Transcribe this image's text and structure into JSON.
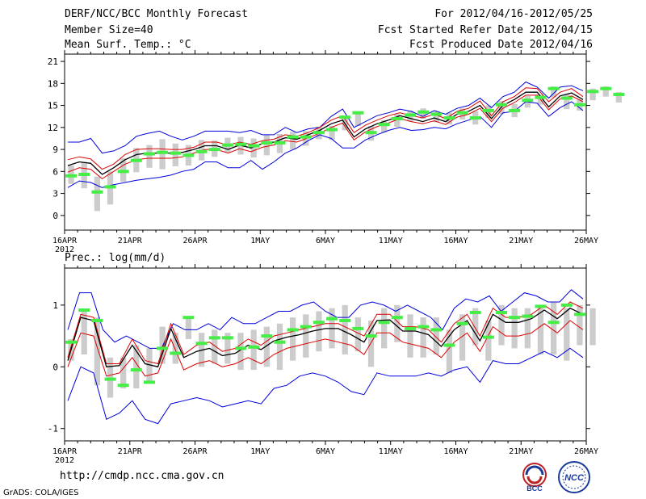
{
  "header": {
    "title": "DERF/NCC/BCC Monthly Forecast",
    "member_size": "Member Size=40",
    "variable1": "Mean Surf. Temp.: °C",
    "period": "For 2012/04/16-2012/05/25",
    "start_date": "Fcst Started Refer Date 2012/04/15",
    "produced_date": "Fcst Produced Date 2012/04/16"
  },
  "footer": {
    "url": "http://cmdp.ncc.cma.gov.cn",
    "grads": "GrADS: COLA/IGES",
    "logo1_text": "BCC",
    "logo2_text": "NCC"
  },
  "colors": {
    "max_min": "#0000dd",
    "spread": "#dd0000",
    "mean": "#000000",
    "obs": "#44ee44",
    "box": "#cccccc"
  },
  "chart_data": [
    {
      "type": "line",
      "title": "Mean Surf. Temp.: °C",
      "x_labels": [
        "16APR",
        "21APR",
        "26APR",
        "1MAY",
        "6MAY",
        "11MAY",
        "16MAY",
        "21MAY",
        "26MAY"
      ],
      "x_sublabel": "2012",
      "yticks": [
        0,
        3,
        6,
        9,
        12,
        15,
        18,
        21
      ],
      "ylim": [
        -2,
        22
      ],
      "series": [
        {
          "name": "max",
          "values": [
            10,
            10,
            10.5,
            8.5,
            8.8,
            9.5,
            10.8,
            11.2,
            11.5,
            10.8,
            10.3,
            10.8,
            11.5,
            11.5,
            11.5,
            11.3,
            11.6,
            11,
            11,
            12,
            11.3,
            11.8,
            12,
            13.5,
            14.5,
            12,
            12.8,
            13.6,
            14,
            14.5,
            14.2,
            13.5,
            14.3,
            13.8,
            14.6,
            15,
            16,
            14.7,
            16.2,
            16.8,
            18.2,
            17.5,
            16,
            17.5,
            17.7,
            17
          ]
        },
        {
          "name": "upper",
          "values": [
            7.6,
            8,
            7.7,
            6.3,
            7,
            8.3,
            9,
            9.1,
            9.1,
            9,
            9,
            9.3,
            10,
            10,
            9.6,
            10,
            9.7,
            10.2,
            10.4,
            11,
            10.8,
            11.3,
            12,
            13,
            13.6,
            11.3,
            12.3,
            13,
            13.6,
            14,
            13.6,
            13.3,
            13.8,
            13.2,
            14.2,
            14.6,
            15.6,
            13.6,
            15.5,
            16.2,
            17.4,
            17.3,
            15.5,
            16.8,
            17.3,
            16.2
          ]
        },
        {
          "name": "mean",
          "values": [
            6.8,
            7.3,
            7.1,
            5.6,
            6.5,
            7.6,
            8.3,
            8.5,
            8.5,
            8.5,
            8.6,
            9,
            9.5,
            9.5,
            9,
            9.6,
            9.2,
            9.8,
            10,
            10.6,
            10.4,
            11,
            11.6,
            12.5,
            13,
            10.7,
            11.8,
            12.5,
            13,
            13.6,
            13.2,
            12.8,
            13.3,
            12.8,
            13.8,
            14.2,
            15,
            13.2,
            15,
            15.8,
            16.8,
            16.8,
            14.8,
            16.3,
            16.7,
            15.8
          ]
        },
        {
          "name": "lower",
          "values": [
            5.9,
            6.5,
            6.3,
            5,
            6,
            7,
            7.6,
            7.8,
            7.8,
            7.8,
            8,
            8.5,
            9,
            9,
            8.5,
            9.1,
            8.7,
            9.3,
            9.6,
            10.2,
            10,
            10.6,
            11.2,
            12,
            12.6,
            10.3,
            11.4,
            12.1,
            12.6,
            13.2,
            12.8,
            12.5,
            12.9,
            12.4,
            13.4,
            13.8,
            14.6,
            12.8,
            14.6,
            15.4,
            16.4,
            16.4,
            14.4,
            15.9,
            16.3,
            15.5
          ]
        },
        {
          "name": "min",
          "values": [
            3.8,
            4.7,
            4.5,
            3.8,
            4.2,
            4.5,
            4.8,
            5,
            5.2,
            5.5,
            6,
            6.3,
            7.3,
            7.3,
            6.5,
            6.5,
            7.5,
            6.3,
            7.3,
            8.5,
            9.2,
            10.2,
            11,
            10.5,
            9.2,
            9.2,
            10.3,
            11,
            11.6,
            12,
            11.6,
            11.7,
            12,
            11.8,
            12.5,
            13,
            13.5,
            12,
            14,
            14.2,
            15.5,
            15.3,
            13.5,
            14.7,
            15.5,
            14.3
          ]
        }
      ],
      "obs": [
        5.4,
        5.6,
        3.2,
        3.9,
        6,
        7.5,
        8.4,
        8.6,
        8.5,
        8.2,
        8.7,
        9,
        9.6,
        9.7,
        9.5,
        9.9,
        9.9,
        10.7,
        10.7,
        11.3,
        11.7,
        13.4,
        14,
        11.3,
        12.4,
        13.2,
        13.7,
        14.1,
        13.8,
        13.3,
        14,
        13.3,
        14.3,
        15.1,
        14.3,
        15.7,
        16.1,
        17.3,
        16,
        15.1,
        16.9,
        17.3,
        16.5
      ],
      "box_low": [
        4.3,
        3.7,
        0.6,
        1.5,
        4.6,
        5.9,
        6.5,
        6.3,
        6.7,
        6.8,
        7.5,
        8,
        8.6,
        8.3,
        7.9,
        8.2,
        8.5,
        9,
        9.5,
        10.4,
        10.3,
        11.6,
        12.2,
        10.2,
        11.3,
        12.1,
        12.8,
        13.2,
        12.7,
        12.4,
        13.1,
        12.4,
        13.3,
        13.8,
        13.4,
        14.7,
        15.1,
        16.1,
        14.5,
        14.3,
        15.7,
        16.2,
        15.4
      ],
      "box_high": [
        6.8,
        7.3,
        5.3,
        6,
        7.8,
        9.2,
        9.6,
        10.4,
        9.8,
        9.6,
        10.3,
        10.2,
        10.6,
        10.7,
        10.5,
        11,
        11.1,
        11.4,
        11.5,
        12.1,
        12.2,
        13.6,
        14.2,
        12.2,
        13,
        13.8,
        14.3,
        14.6,
        14.2,
        14,
        14.6,
        14.2,
        15,
        15.6,
        15.2,
        16.3,
        16.5,
        17.6,
        16.5,
        15.8,
        17.3,
        17.6,
        16.8
      ]
    },
    {
      "type": "line",
      "title": "Prec.: log(mm/d)",
      "x_labels": [
        "16APR",
        "21APR",
        "26APR",
        "1MAY",
        "6MAY",
        "11MAY",
        "16MAY",
        "21MAY",
        "26MAY"
      ],
      "x_sublabel": "2012",
      "yticks": [
        -1,
        0,
        1
      ],
      "yticklabels": [
        "-1",
        "0",
        "1"
      ],
      "ylim": [
        -1.2,
        1.6
      ],
      "series": [
        {
          "name": "max",
          "values": [
            0.6,
            1.2,
            1.2,
            0.6,
            0.4,
            0.5,
            0.4,
            0.3,
            0.3,
            0.7,
            0.6,
            0.6,
            0.7,
            0.6,
            0.8,
            0.7,
            0.7,
            0.8,
            0.9,
            0.9,
            1,
            1.05,
            0.9,
            0.8,
            0.8,
            1,
            1.05,
            1,
            0.9,
            1,
            0.9,
            0.8,
            0.6,
            0.95,
            1.1,
            1.05,
            1.15,
            0.9,
            1.05,
            1.2,
            1.15,
            1.05,
            1.05,
            1.25,
            1.1
          ]
        },
        {
          "name": "upper",
          "values": [
            0.15,
            0.85,
            0.8,
            0.05,
            0.05,
            0.45,
            0.1,
            0.05,
            0.7,
            0.2,
            0.35,
            0.4,
            0.25,
            0.3,
            0.45,
            0.35,
            0.5,
            0.55,
            0.6,
            0.65,
            0.7,
            0.7,
            0.6,
            0.5,
            0.85,
            0.85,
            0.65,
            0.65,
            0.6,
            0.4,
            0.7,
            0.85,
            0.5,
            0.95,
            0.8,
            0.8,
            0.85,
            1,
            0.85,
            1.05,
            0.95
          ]
        },
        {
          "name": "mean",
          "values": [
            0.1,
            0.8,
            0.75,
            0,
            0.02,
            0.35,
            0.05,
            0,
            0.62,
            0.15,
            0.25,
            0.3,
            0.18,
            0.22,
            0.35,
            0.28,
            0.42,
            0.48,
            0.52,
            0.58,
            0.62,
            0.62,
            0.52,
            0.4,
            0.75,
            0.76,
            0.58,
            0.58,
            0.52,
            0.33,
            0.6,
            0.75,
            0.42,
            0.85,
            0.72,
            0.72,
            0.78,
            0.92,
            0.78,
            0.95,
            0.85
          ]
        },
        {
          "name": "lower",
          "values": [
            0,
            0.55,
            0.5,
            -0.15,
            -0.1,
            0.15,
            -0.15,
            -0.1,
            0.45,
            -0.05,
            0.05,
            0.1,
            0,
            0.05,
            0.15,
            0.05,
            0.2,
            0.3,
            0.35,
            0.4,
            0.45,
            0.4,
            0.35,
            0.2,
            0.55,
            0.55,
            0.4,
            0.35,
            0.3,
            0.15,
            0.4,
            0.55,
            0.25,
            0.65,
            0.5,
            0.5,
            0.55,
            0.7,
            0.55,
            0.75,
            0.6
          ]
        },
        {
          "name": "min",
          "values": [
            -0.55,
            0,
            -0.1,
            -0.85,
            -0.75,
            -0.55,
            -0.85,
            -0.92,
            -0.6,
            -0.55,
            -0.5,
            -0.55,
            -0.65,
            -0.6,
            -0.55,
            -0.6,
            -0.35,
            -0.3,
            -0.15,
            -0.1,
            -0.15,
            -0.25,
            -0.4,
            -0.45,
            -0.1,
            -0.15,
            -0.15,
            -0.15,
            -0.1,
            -0.15,
            -0.05,
            0,
            -0.25,
            0.1,
            0.05,
            0.05,
            0.15,
            0.25,
            0.15,
            0.3,
            0.15
          ]
        }
      ],
      "obs": [
        0.4,
        0.92,
        0.75,
        -0.2,
        -0.3,
        -0.05,
        -0.25,
        0.3,
        0.22,
        0.8,
        0.38,
        0.47,
        0.47,
        0.3,
        0.32,
        0.5,
        0.4,
        0.6,
        0.65,
        0.72,
        0.78,
        0.75,
        0.62,
        0.5,
        0.72,
        0.8,
        0.62,
        0.65,
        0.6,
        0.35,
        0.7,
        0.88,
        0.48,
        0.88,
        0.8,
        0.82,
        0.98,
        0.72,
        1,
        0.85
      ],
      "box_low": [
        0.1,
        0.2,
        -0.3,
        -0.5,
        -0.35,
        -0.35,
        -0.25,
        0.05,
        0.05,
        0.45,
        0,
        0.05,
        0.05,
        -0.05,
        -0.05,
        0,
        -0.05,
        0.1,
        0.15,
        0.25,
        0.3,
        0.2,
        0.25,
        0,
        0.3,
        0.4,
        0.15,
        0.15,
        0.2,
        -0.1,
        0.1,
        0.35,
        0.1,
        0.35,
        0.3,
        0.3,
        0.2,
        0.2,
        0.1,
        0.35,
        0.35
      ],
      "box_high": [
        0.45,
        0.9,
        0.8,
        0.15,
        0.15,
        0.35,
        0.3,
        0.65,
        0.55,
        0.8,
        0.55,
        0.6,
        0.55,
        0.55,
        0.6,
        0.65,
        0.7,
        0.8,
        0.85,
        0.9,
        0.95,
        1,
        0.8,
        0.75,
        0.95,
        1,
        0.85,
        0.8,
        0.8,
        0.6,
        0.85,
        0.95,
        0.75,
        1,
        0.95,
        0.95,
        1,
        1.05,
        0.95,
        1,
        0.95
      ]
    }
  ]
}
